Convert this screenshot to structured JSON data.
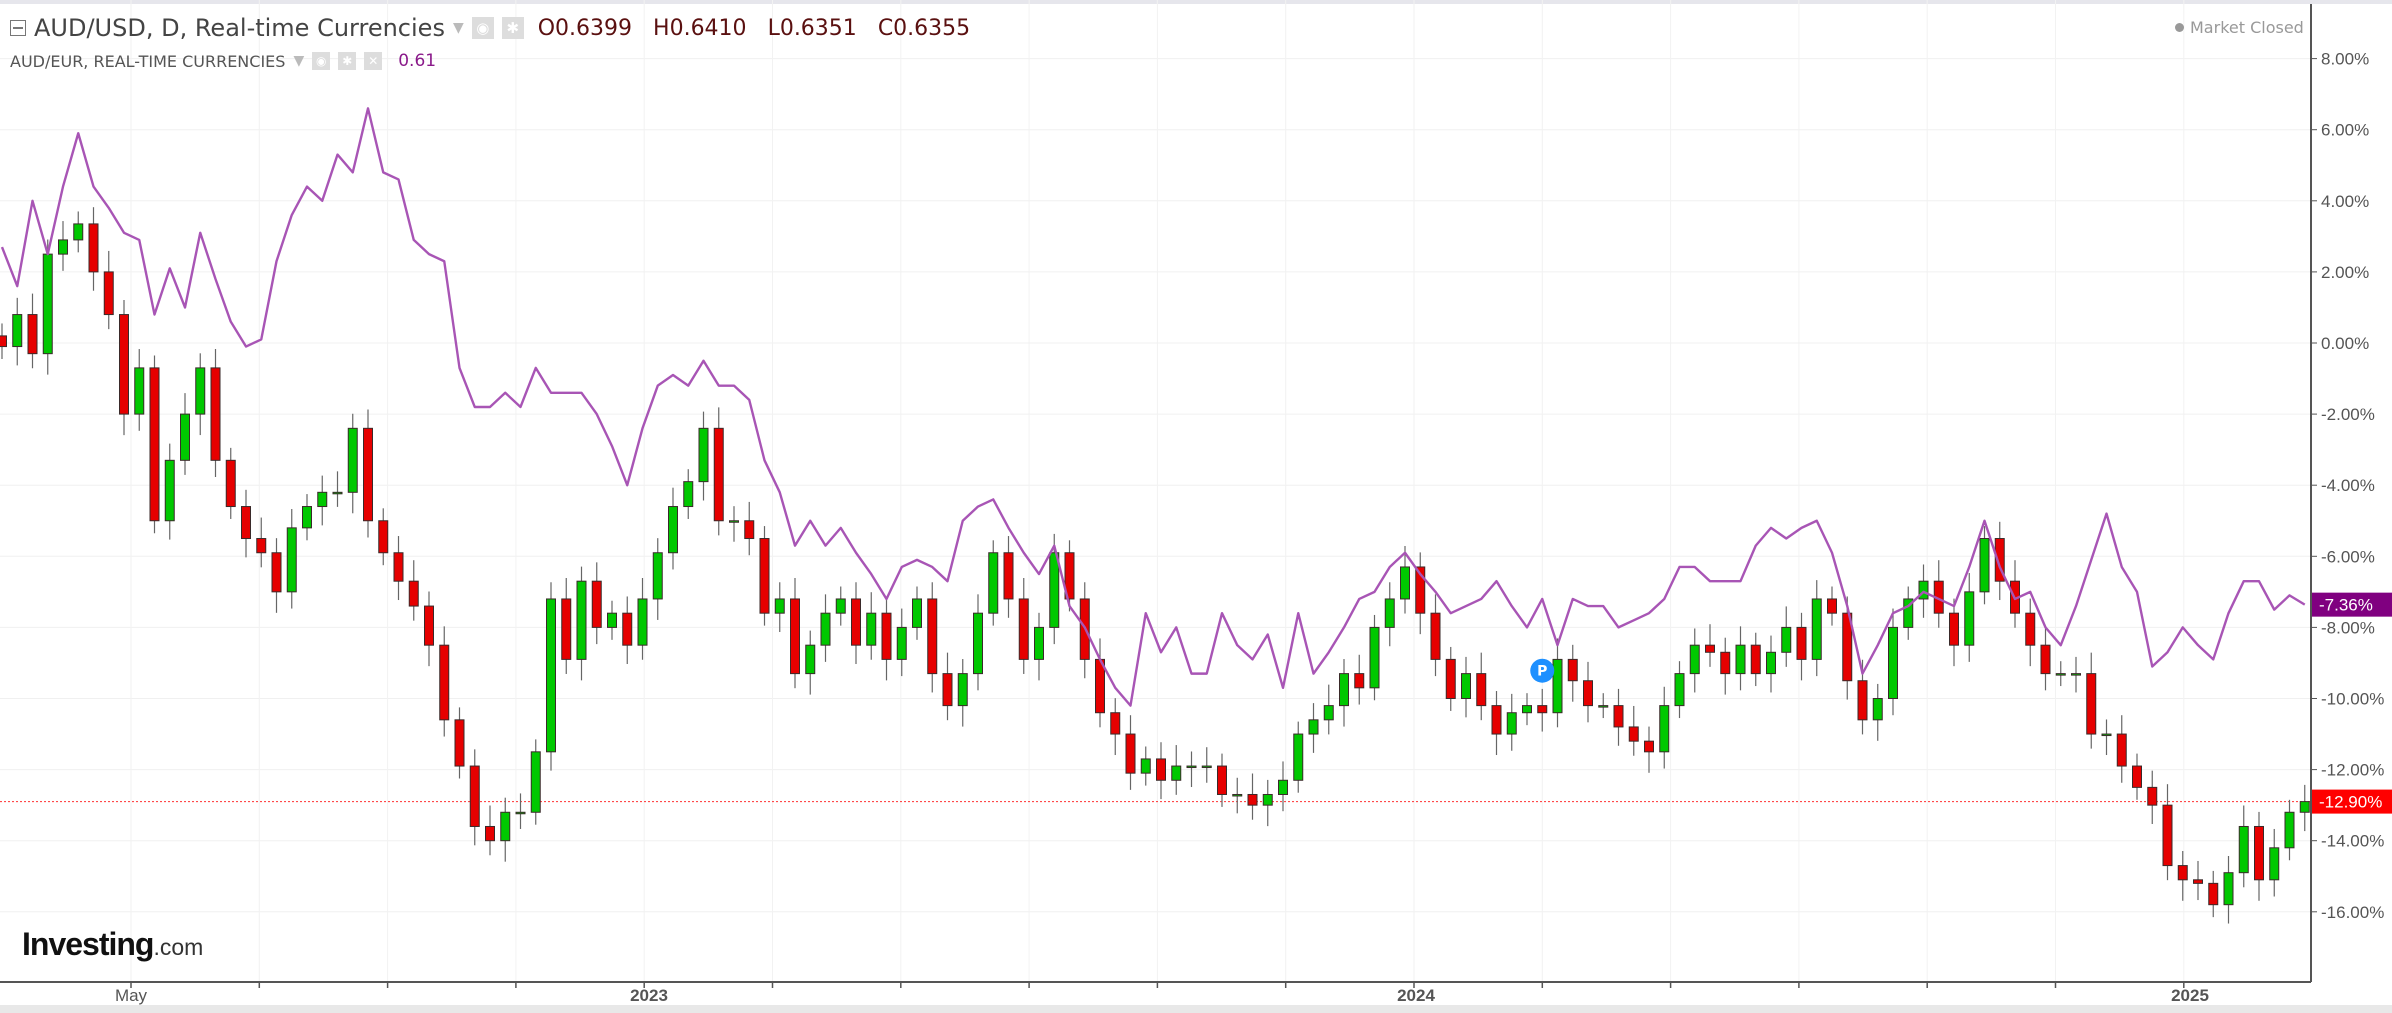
{
  "header": {
    "symbol_title": "AUD/USD, D, Real-time Currencies",
    "ohlc": {
      "open": "O0.6399",
      "high": "H0.6410",
      "low": "L0.6351",
      "close": "C0.6355"
    },
    "compare_title": "AUD/EUR, REAL-TIME CURRENCIES",
    "compare_value": "0.61",
    "market_status": "Market Closed"
  },
  "logo": {
    "brand": "Investing",
    "suffix": ".com"
  },
  "colors": {
    "up": "#00c800",
    "down": "#e60000",
    "compare_line": "#a855b5",
    "compare_tag": "#800080",
    "last_price_tag": "#ff0000",
    "marker": "#1e90ff"
  },
  "icons": {
    "collapse": "collapse-icon",
    "visibility": "eye-icon",
    "settings": "gear-icon",
    "remove": "close-icon",
    "dropdown": "caret-down-icon",
    "marker": "p-marker-icon"
  },
  "chart_data": {
    "type": "candlestick+line",
    "y_axis": {
      "unit": "%",
      "range": [
        -17.5,
        9.5
      ],
      "ticks": [
        "8.00%",
        "6.00%",
        "4.00%",
        "2.00%",
        "0.00%",
        "-2.00%",
        "-4.00%",
        "-6.00%",
        "-8.00%",
        "-10.00%",
        "-12.00%",
        "-14.00%",
        "-16.00%"
      ],
      "tick_values": [
        8,
        6,
        4,
        2,
        0,
        -2,
        -4,
        -6,
        -8,
        -10,
        -12,
        -14,
        -16
      ],
      "grid": true
    },
    "x_axis": {
      "tick_labels": [
        "May",
        "2023",
        "2024",
        "2025"
      ]
    },
    "series": [
      {
        "name": "AUD/USD",
        "kind": "candlestick",
        "last_label": "-12.90%",
        "last_value": -12.9,
        "closes": [
          -0.1,
          0.8,
          -0.3,
          2.5,
          2.9,
          3.35,
          2.0,
          0.8,
          -2.0,
          -0.7,
          -5.0,
          -3.3,
          -2.0,
          -0.7,
          -3.3,
          -4.6,
          -5.5,
          -5.9,
          -7.0,
          -5.2,
          -4.6,
          -4.2,
          -4.2,
          -2.4,
          -5.0,
          -5.9,
          -6.7,
          -7.4,
          -8.5,
          -10.6,
          -11.9,
          -13.6,
          -14.0,
          -13.2,
          -13.2,
          -11.5,
          -7.2,
          -8.9,
          -6.7,
          -8.0,
          -7.6,
          -8.5,
          -7.2,
          -5.9,
          -4.6,
          -3.9,
          -2.4,
          -5.0,
          -5.0,
          -5.5,
          -7.6,
          -7.2,
          -9.3,
          -8.5,
          -7.6,
          -7.2,
          -8.5,
          -7.6,
          -8.9,
          -8.0,
          -7.2,
          -9.3,
          -10.2,
          -9.3,
          -7.6,
          -5.9,
          -7.2,
          -8.9,
          -8.0,
          -5.9,
          -7.2,
          -8.9,
          -10.4,
          -11.0,
          -12.1,
          -11.7,
          -12.3,
          -11.9,
          -11.9,
          -11.9,
          -12.7,
          -12.7,
          -13.0,
          -12.7,
          -12.3,
          -11.0,
          -10.6,
          -10.2,
          -9.3,
          -9.7,
          -8.0,
          -7.2,
          -6.3,
          -7.6,
          -8.9,
          -10.0,
          -9.3,
          -10.2,
          -11.0,
          -10.4,
          -10.2,
          -10.4,
          -8.9,
          -9.5,
          -10.2,
          -10.2,
          -10.8,
          -11.2,
          -11.5,
          -10.2,
          -9.3,
          -8.5,
          -8.7,
          -9.3,
          -8.5,
          -9.3,
          -8.7,
          -8.0,
          -8.9,
          -7.2,
          -7.6,
          -9.5,
          -10.6,
          -10.0,
          -8.0,
          -7.2,
          -6.7,
          -7.6,
          -8.5,
          -7.0,
          -5.5,
          -6.7,
          -7.6,
          -8.5,
          -9.3,
          -9.3,
          -9.3,
          -11.0,
          -11.0,
          -11.9,
          -12.5,
          -13.0,
          -14.7,
          -15.1,
          -15.2,
          -15.8,
          -14.9,
          -13.6,
          -15.1,
          -14.2,
          -13.2,
          -12.9
        ]
      },
      {
        "name": "AUD/EUR",
        "kind": "line",
        "last_label": "-7.36%",
        "last_value": -7.36,
        "values": [
          2.7,
          1.6,
          4.0,
          2.5,
          4.4,
          5.9,
          4.4,
          3.8,
          3.1,
          2.9,
          0.8,
          2.1,
          1.0,
          3.1,
          1.8,
          0.6,
          -0.1,
          0.1,
          2.3,
          3.6,
          4.4,
          4.0,
          5.3,
          4.8,
          6.6,
          4.8,
          4.6,
          2.9,
          2.5,
          2.3,
          -0.7,
          -1.8,
          -1.8,
          -1.4,
          -1.8,
          -0.7,
          -1.4,
          -1.4,
          -1.4,
          -2.0,
          -2.9,
          -4.0,
          -2.4,
          -1.2,
          -0.9,
          -1.2,
          -0.5,
          -1.2,
          -1.2,
          -1.6,
          -3.3,
          -4.2,
          -5.7,
          -5.0,
          -5.7,
          -5.2,
          -5.9,
          -6.5,
          -7.2,
          -6.3,
          -6.1,
          -6.3,
          -6.7,
          -5.0,
          -4.6,
          -4.4,
          -5.2,
          -5.9,
          -6.5,
          -5.7,
          -7.4,
          -8.0,
          -8.9,
          -9.7,
          -10.2,
          -7.6,
          -8.7,
          -8.0,
          -9.3,
          -9.3,
          -7.6,
          -8.5,
          -8.9,
          -8.2,
          -9.7,
          -7.6,
          -9.3,
          -8.7,
          -8.0,
          -7.2,
          -7.0,
          -6.3,
          -5.9,
          -6.5,
          -7.0,
          -7.6,
          -7.4,
          -7.2,
          -6.7,
          -7.4,
          -8.0,
          -7.2,
          -8.5,
          -7.2,
          -7.4,
          -7.4,
          -8.0,
          -7.8,
          -7.6,
          -7.2,
          -6.3,
          -6.3,
          -6.7,
          -6.7,
          -6.7,
          -5.7,
          -5.2,
          -5.5,
          -5.2,
          -5.0,
          -5.9,
          -7.4,
          -9.3,
          -8.5,
          -7.6,
          -7.4,
          -7.0,
          -7.2,
          -7.4,
          -6.3,
          -5.0,
          -6.3,
          -7.2,
          -7.0,
          -8.0,
          -8.5,
          -7.4,
          -6.1,
          -4.8,
          -6.3,
          -7.0,
          -9.1,
          -8.7,
          -8.0,
          -8.5,
          -8.9,
          -7.6,
          -6.7,
          -6.7,
          -7.5,
          -7.1,
          -7.36
        ]
      }
    ],
    "reference_line": {
      "value": -12.9,
      "style": "dotted"
    },
    "marker": {
      "label": "P",
      "series": "AUD/USD"
    },
    "legend": "top-left"
  }
}
